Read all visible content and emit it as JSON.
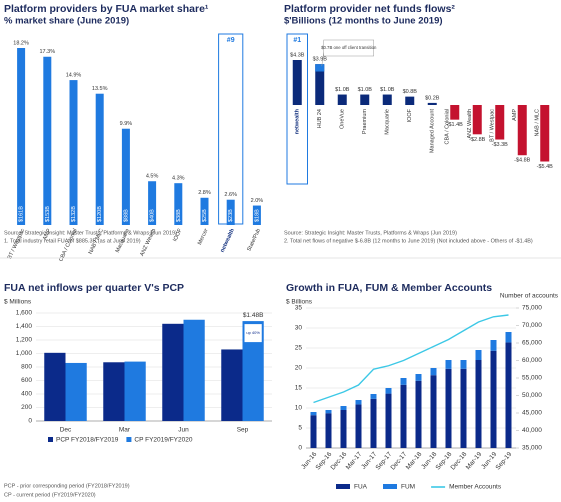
{
  "chart_data": [
    {
      "type": "bar",
      "title": "Platform providers by FUA market share¹",
      "subtitle": "% market share (June 2019)",
      "categories": [
        "BT / Westpac",
        "AMP",
        "CBA / Colonial",
        "NAB / MLC",
        "Macquarie",
        "ANZ Wealth",
        "IOOF",
        "Mercer",
        "netwealth",
        "State/Pub"
      ],
      "values": [
        18.2,
        17.3,
        14.9,
        13.5,
        9.9,
        4.5,
        4.3,
        2.8,
        2.6,
        2.0
      ],
      "value_labels": [
        "18.2%",
        "17.3%",
        "14.9%",
        "13.5%",
        "9.9%",
        "4.5%",
        "4.3%",
        "2.8%",
        "2.6%",
        "2.0%"
      ],
      "fua_labels": [
        "$161B",
        "$153B",
        "$132B",
        "$120B",
        "$88B",
        "$40B",
        "$38B",
        "$25B",
        "$23B",
        "$18B"
      ],
      "color": "#1f7ae0",
      "highlight_category": "netwealth",
      "highlight_label": "#9",
      "source": "Source: Strategic Insight: Master Trusts, Platforms & Wraps (Jun 2019)",
      "footnote": "1.     Total industry retail FUA of $885.3B (as at June 2019)"
    },
    {
      "type": "bar",
      "title": "Platform provider net funds flows²",
      "subtitle": "$'Billions (12 months to June 2019)",
      "categories": [
        "netwealth",
        "HUB 24",
        "OneVue",
        "Praemium",
        "Macquarie",
        "IOOF",
        "Managed Account",
        "CBA / Colonial",
        "ANZ Wealth",
        "BT / Westpac",
        "AMP",
        "NAB / MLC"
      ],
      "values": [
        4.3,
        3.9,
        1.0,
        1.0,
        1.0,
        0.8,
        0.2,
        -1.4,
        -2.8,
        -3.3,
        -4.8,
        -5.4
      ],
      "value_labels": [
        "$4.3B",
        "$3.9B",
        "$1.0B",
        "$1.0B",
        "$1.0B",
        "$0.8B",
        "$0.2B",
        "-$1.4B",
        "-$2.8B",
        "-$3.3B",
        "-$4.8B",
        "-$5.4B"
      ],
      "colors": [
        "#0b2a7a",
        "#0b2a7a",
        "#0b2a7a",
        "#0b2a7a",
        "#0b2a7a",
        "#0b2a7a",
        "#0b2a7a",
        "#c4122f",
        "#c4122f",
        "#c4122f",
        "#c4122f",
        "#c4122f"
      ],
      "annotation": {
        "category": "HUB 24",
        "value": 0.7,
        "text": "$0.7B one off client transition",
        "color": "#1f7ae0"
      },
      "highlight_category": "netwealth",
      "highlight_label": "#1",
      "source": "Source: Strategic Insight: Master Trusts, Platforms & Wraps (Jun 2019)",
      "footnote": "2.     Total net flows of negative $-6.8B (12 months to June 2019) (Not included above - Others of -$1.4B)"
    },
    {
      "type": "bar",
      "title": "FUA net inflows per quarter V's PCP",
      "ylabel": "$ Millions",
      "categories": [
        "Dec",
        "Mar",
        "Jun",
        "Sep"
      ],
      "series": [
        {
          "name": "PCP FY2018/FY2019",
          "color": "#0b2a8a",
          "values": [
            1010,
            870,
            1440,
            1060
          ]
        },
        {
          "name": "CP FY2019/FY2020",
          "color": "#1f7ae0",
          "values": [
            860,
            880,
            1500,
            1480
          ],
          "value_labels": [
            null,
            null,
            null,
            "$1.48B"
          ]
        }
      ],
      "callout": "up 40%",
      "ylim": [
        0,
        1600
      ],
      "yticks": [
        0,
        200,
        400,
        600,
        800,
        {
          "value": 1000,
          "label": "1,000"
        },
        {
          "value": 1200,
          "label": "1,200"
        },
        {
          "value": 1400,
          "label": "1,400"
        },
        {
          "value": 1600,
          "label": "1,600"
        }
      ],
      "grid": true,
      "notes": [
        "PCP - prior corresponding period (FY2018/FY2019)",
        "CP - current period (FY2019/FY2020)"
      ]
    },
    {
      "type": "bar_line",
      "title": "Growth in FUA, FUM & Member Accounts",
      "ylabel": "$ Billions",
      "y2label": "Number of accounts",
      "x": [
        "Jun-16",
        "Sep-16",
        "Dec-16",
        "Mar-17",
        "Jun-17",
        "Sep-17",
        "Dec-17",
        "Mar-18",
        "Jun-18",
        "Sep-18",
        "Dec-18",
        "Mar-19",
        "Jun-19",
        "Sep-19"
      ],
      "series": [
        {
          "name": "FUA",
          "color": "#0b2a8a",
          "values": [
            8.2,
            8.7,
            9.5,
            10.9,
            12.3,
            13.6,
            15.8,
            16.8,
            18.2,
            19.8,
            19.8,
            22.0,
            24.3,
            26.4
          ]
        },
        {
          "name": "FUM",
          "color": "#1f7ae0",
          "values": [
            0.8,
            0.8,
            1.0,
            1.1,
            1.2,
            1.4,
            1.7,
            1.7,
            1.8,
            2.2,
            2.2,
            2.5,
            2.7,
            2.6
          ]
        },
        {
          "name": "Member Accounts",
          "color": "#3cc8e6",
          "axis": "y2",
          "values": [
            48000,
            49500,
            51000,
            53000,
            57500,
            58500,
            60000,
            62000,
            64000,
            66000,
            68500,
            71000,
            72500,
            73000
          ]
        }
      ],
      "ylim": [
        0,
        35
      ],
      "yticks": [
        0,
        5,
        10,
        15,
        20,
        25,
        30,
        35
      ],
      "y2lim": [
        35000,
        75000
      ],
      "y2ticks": [
        {
          "value": 35000,
          "label": "35,000"
        },
        {
          "value": 40000,
          "label": "40,000"
        },
        {
          "value": 45000,
          "label": "45,000"
        },
        {
          "value": 50000,
          "label": "50,000"
        },
        {
          "value": 55000,
          "label": "55,000"
        },
        {
          "value": 60000,
          "label": "60,000"
        },
        {
          "value": 65000,
          "label": "65,000"
        },
        {
          "value": 70000,
          "label": "70,000"
        },
        {
          "value": 75000,
          "label": "75,000"
        }
      ],
      "grid": true
    }
  ]
}
